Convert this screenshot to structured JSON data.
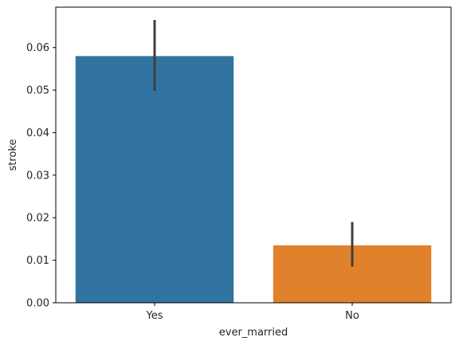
{
  "chart_data": {
    "type": "bar",
    "xlabel": "ever_married",
    "ylabel": "stroke",
    "categories": [
      "Yes",
      "No"
    ],
    "values": [
      0.058,
      0.0135
    ],
    "error_bars": [
      [
        0.0498,
        0.0665
      ],
      [
        0.0085,
        0.019
      ]
    ],
    "colors": [
      "#3274a1",
      "#e1812c"
    ],
    "error_color": "#3f3f3f",
    "ylim": [
      0,
      0.0695
    ],
    "yticks": [
      0.0,
      0.01,
      0.02,
      0.03,
      0.04,
      0.05,
      0.06
    ],
    "ytick_labels": [
      "0.00",
      "0.01",
      "0.02",
      "0.03",
      "0.04",
      "0.05",
      "0.06"
    ],
    "grid": false,
    "legend": false
  }
}
